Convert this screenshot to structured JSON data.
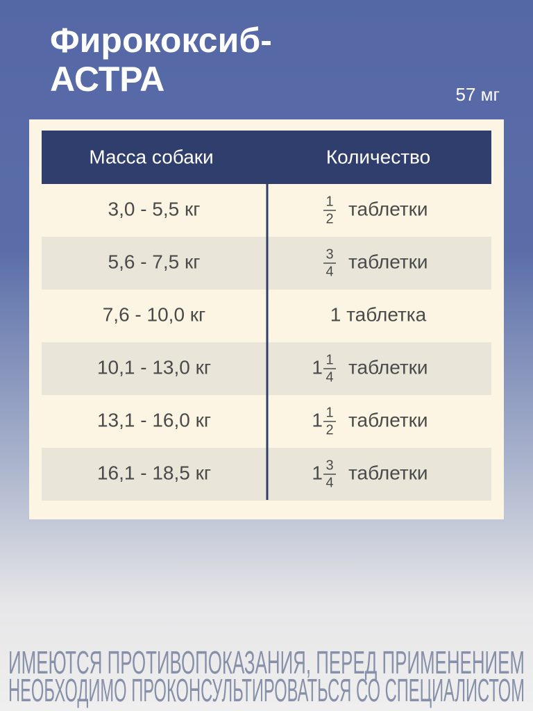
{
  "header": {
    "title_lines": [
      "Фирококсиб-",
      "АСТРА"
    ],
    "dose": "57 мг"
  },
  "table": {
    "headers": [
      "Масса собаки",
      "Количество"
    ],
    "rows": [
      {
        "mass": "3,0 - 5,5 кг",
        "quantity": {
          "num": "1",
          "den": "2",
          "unit": "таблетки"
        }
      },
      {
        "mass": "5,6 - 7,5 кг",
        "quantity": {
          "num": "3",
          "den": "4",
          "unit": "таблетки"
        }
      },
      {
        "mass": "7,6 - 10,0 кг",
        "quantity": {
          "unit": "1 таблетка"
        }
      },
      {
        "mass": "10,1 - 13,0 кг",
        "quantity": {
          "whole": "1",
          "num": "1",
          "den": "4",
          "unit": "таблетки"
        }
      },
      {
        "mass": "13,1 - 16,0 кг",
        "quantity": {
          "whole": "1",
          "num": "1",
          "den": "2",
          "unit": "таблетки"
        }
      },
      {
        "mass": "16,1 - 18,5 кг",
        "quantity": {
          "whole": "1",
          "num": "3",
          "den": "4",
          "unit": "таблетки"
        }
      }
    ]
  },
  "footer": {
    "lines": [
      "ИМЕЮТСЯ ПРОТИВОПОКАЗАНИЯ, ПЕРЕД ПРИМЕНЕНИЕМ",
      "НЕОБХОДИМО ПРОКОНСУЛЬТИРОВАТЬСЯ СО СПЕЦИАЛИСТОМ"
    ]
  }
}
